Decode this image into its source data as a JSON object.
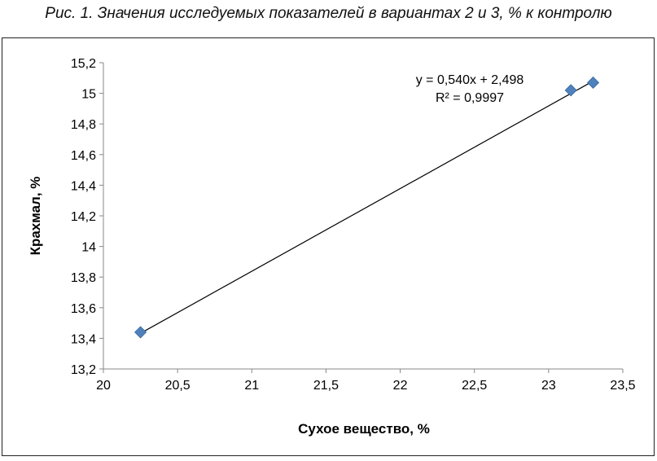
{
  "caption": "Рис. 1. Значения исследуемых показателей в вариантах 2 и 3, % к контролю",
  "chart_data": {
    "type": "scatter",
    "title": "",
    "xlabel": "Сухое вещество, %",
    "ylabel": "Крахмал, %",
    "xlim": [
      20,
      23.5
    ],
    "ylim": [
      13.2,
      15.2
    ],
    "x_ticks": [
      "20",
      "20,5",
      "21",
      "21,5",
      "22",
      "22,5",
      "23",
      "23,5"
    ],
    "y_ticks": [
      "13,2",
      "13,4",
      "13,6",
      "13,8",
      "14",
      "14,2",
      "14,4",
      "14,6",
      "14,8",
      "15",
      "15,2"
    ],
    "grid": false,
    "points": [
      {
        "x": 20.25,
        "y": 13.44
      },
      {
        "x": 23.15,
        "y": 15.02
      },
      {
        "x": 23.3,
        "y": 15.07
      }
    ],
    "trendline": {
      "type": "linear",
      "slope": 0.54,
      "intercept": 2.498,
      "equation_label": "y = 0,540x + 2,498",
      "r2_label": "R² = 0,9997"
    },
    "marker_color": "#4F81BD",
    "line_color": "#000000"
  }
}
